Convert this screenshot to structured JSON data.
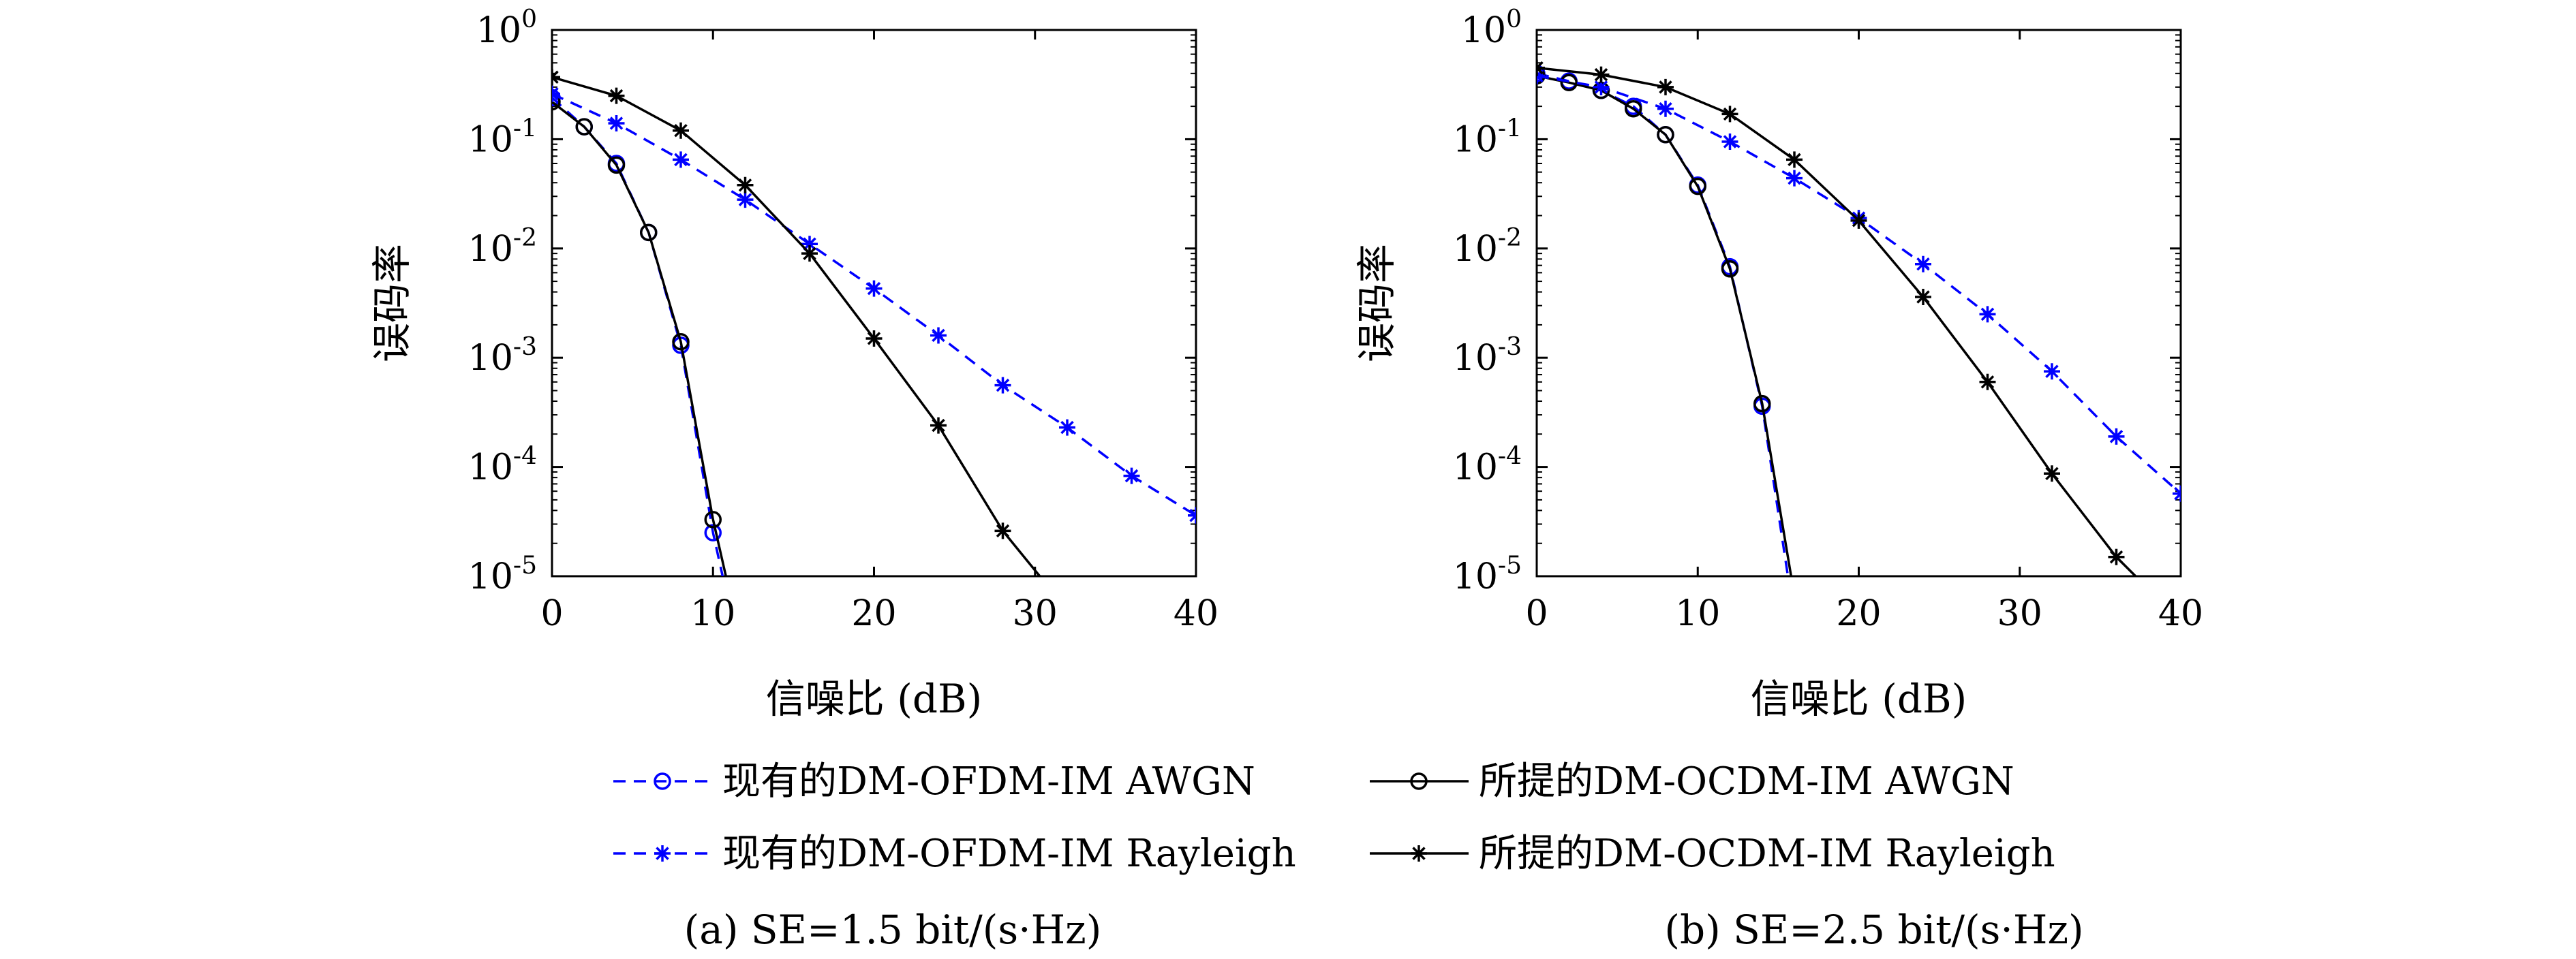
{
  "legend": {
    "items": [
      {
        "label": "现有的DM-OFDM-IM AWGN",
        "color": "#0000ff",
        "marker": "circle",
        "dash": true
      },
      {
        "label": "所提的DM-OCDM-IM AWGN",
        "color": "#000000",
        "marker": "circle",
        "dash": false
      },
      {
        "label": "现有的DM-OFDM-IM Rayleigh",
        "color": "#0000ff",
        "marker": "star",
        "dash": true
      },
      {
        "label": "所提的DM-OCDM-IM Rayleigh",
        "color": "#000000",
        "marker": "star",
        "dash": false
      }
    ]
  },
  "chart_data": [
    {
      "type": "line",
      "caption": "(a) SE=1.5 bit/(s·Hz)",
      "xlabel": "信噪比 (dB)",
      "ylabel": "误码率",
      "xlim": [
        0,
        40
      ],
      "ylim": [
        1e-05,
        1
      ],
      "yscale": "log",
      "xticks": [
        "0",
        "10",
        "20",
        "30",
        "40"
      ],
      "yticks": [
        {
          "base": "10",
          "exp": "0"
        },
        {
          "base": "10",
          "exp": "-1"
        },
        {
          "base": "10",
          "exp": "-2"
        },
        {
          "base": "10",
          "exp": "-3"
        },
        {
          "base": "10",
          "exp": "-4"
        },
        {
          "base": "10",
          "exp": "-5"
        }
      ],
      "series": [
        {
          "name": "现有的DM-OFDM-IM AWGN",
          "color": "#0000ff",
          "marker": "circle",
          "dash": true,
          "x": [
            0,
            2,
            4,
            6,
            8,
            10,
            10.6
          ],
          "y": [
            0.24,
            0.13,
            0.06,
            0.014,
            0.0013,
            2.5e-05,
            1e-05
          ],
          "markers_x": [
            0,
            2,
            4,
            6,
            8,
            10
          ]
        },
        {
          "name": "所提的DM-OCDM-IM AWGN",
          "color": "#000000",
          "marker": "circle",
          "dash": false,
          "x": [
            0,
            2,
            4,
            6,
            8,
            10,
            10.8
          ],
          "y": [
            0.22,
            0.13,
            0.058,
            0.014,
            0.0014,
            3.3e-05,
            1e-05
          ],
          "markers_x": [
            0,
            2,
            4,
            6,
            8,
            10
          ]
        },
        {
          "name": "现有的DM-OFDM-IM Rayleigh",
          "color": "#0000ff",
          "marker": "star",
          "dash": true,
          "x": [
            0,
            4,
            8,
            12,
            16,
            20,
            24,
            28,
            32,
            36,
            40
          ],
          "y": [
            0.26,
            0.14,
            0.065,
            0.028,
            0.011,
            0.0043,
            0.0016,
            0.00056,
            0.00023,
            8.3e-05,
            3.6e-05
          ]
        },
        {
          "name": "所提的DM-OCDM-IM Rayleigh",
          "color": "#000000",
          "marker": "star",
          "dash": false,
          "x": [
            0,
            4,
            8,
            12,
            16,
            20,
            24,
            28,
            30.3
          ],
          "y": [
            0.37,
            0.25,
            0.12,
            0.038,
            0.009,
            0.0015,
            0.00024,
            2.6e-05,
            1e-05
          ],
          "markers_x": [
            0,
            4,
            8,
            12,
            16,
            20,
            24,
            28
          ]
        }
      ]
    },
    {
      "type": "line",
      "caption": "(b) SE=2.5 bit/(s·Hz)",
      "xlabel": "信噪比 (dB)",
      "ylabel": "误码率",
      "xlim": [
        0,
        40
      ],
      "ylim": [
        1e-05,
        1
      ],
      "yscale": "log",
      "xticks": [
        "0",
        "10",
        "20",
        "30",
        "40"
      ],
      "yticks": [
        {
          "base": "10",
          "exp": "0"
        },
        {
          "base": "10",
          "exp": "-1"
        },
        {
          "base": "10",
          "exp": "-2"
        },
        {
          "base": "10",
          "exp": "-3"
        },
        {
          "base": "10",
          "exp": "-4"
        },
        {
          "base": "10",
          "exp": "-5"
        }
      ],
      "series": [
        {
          "name": "现有的DM-OFDM-IM AWGN",
          "color": "#0000ff",
          "marker": "circle",
          "dash": true,
          "x": [
            0,
            2,
            4,
            6,
            8,
            10,
            12,
            14,
            15.6
          ],
          "y": [
            0.4,
            0.34,
            0.28,
            0.2,
            0.11,
            0.038,
            0.0068,
            0.00036,
            1e-05
          ],
          "markers_x": [
            0,
            2,
            4,
            6,
            8,
            10,
            12,
            14
          ]
        },
        {
          "name": "所提的DM-OCDM-IM AWGN",
          "color": "#000000",
          "marker": "circle",
          "dash": false,
          "x": [
            0,
            2,
            4,
            6,
            8,
            10,
            12,
            14,
            15.8
          ],
          "y": [
            0.38,
            0.33,
            0.28,
            0.19,
            0.11,
            0.037,
            0.0065,
            0.00038,
            1e-05
          ],
          "markers_x": [
            0,
            2,
            4,
            6,
            8,
            10,
            12,
            14
          ]
        },
        {
          "name": "现有的DM-OFDM-IM Rayleigh",
          "color": "#0000ff",
          "marker": "star",
          "dash": true,
          "x": [
            0,
            4,
            8,
            12,
            16,
            20,
            24,
            28,
            32,
            36,
            40
          ],
          "y": [
            0.38,
            0.3,
            0.19,
            0.095,
            0.044,
            0.019,
            0.0072,
            0.0025,
            0.00075,
            0.00019,
            5.7e-05
          ]
        },
        {
          "name": "所提的DM-OCDM-IM Rayleigh",
          "color": "#000000",
          "marker": "star",
          "dash": false,
          "x": [
            0,
            4,
            8,
            12,
            16,
            20,
            24,
            28,
            32,
            36,
            37.2
          ],
          "y": [
            0.45,
            0.39,
            0.3,
            0.17,
            0.065,
            0.018,
            0.0036,
            0.0006,
            8.7e-05,
            1.5e-05,
            1e-05
          ],
          "markers_x": [
            0,
            4,
            8,
            12,
            16,
            20,
            24,
            28,
            32,
            36
          ]
        }
      ]
    }
  ]
}
